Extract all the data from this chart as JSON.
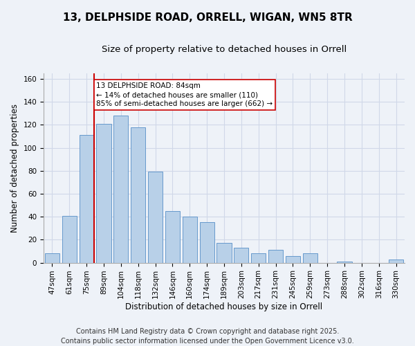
{
  "title": "13, DELPHSIDE ROAD, ORRELL, WIGAN, WN5 8TR",
  "subtitle": "Size of property relative to detached houses in Orrell",
  "xlabel": "Distribution of detached houses by size in Orrell",
  "ylabel": "Number of detached properties",
  "bar_labels": [
    "47sqm",
    "61sqm",
    "75sqm",
    "89sqm",
    "104sqm",
    "118sqm",
    "132sqm",
    "146sqm",
    "160sqm",
    "174sqm",
    "189sqm",
    "203sqm",
    "217sqm",
    "231sqm",
    "245sqm",
    "259sqm",
    "273sqm",
    "288sqm",
    "302sqm",
    "316sqm",
    "330sqm"
  ],
  "bar_values": [
    8,
    41,
    111,
    121,
    128,
    118,
    79,
    45,
    40,
    35,
    17,
    13,
    8,
    11,
    6,
    8,
    0,
    1,
    0,
    0,
    3
  ],
  "bar_color": "#b8d0e8",
  "bar_edge_color": "#6699cc",
  "vline_color": "#cc0000",
  "annotation_text": "13 DELPHSIDE ROAD: 84sqm\n← 14% of detached houses are smaller (110)\n85% of semi-detached houses are larger (662) →",
  "annotation_box_color": "#ffffff",
  "annotation_box_edge_color": "#cc0000",
  "ylim": [
    0,
    165
  ],
  "yticks": [
    0,
    20,
    40,
    60,
    80,
    100,
    120,
    140,
    160
  ],
  "grid_color": "#d0d8e8",
  "background_color": "#eef2f8",
  "footer_text": "Contains HM Land Registry data © Crown copyright and database right 2025.\nContains public sector information licensed under the Open Government Licence v3.0.",
  "title_fontsize": 11,
  "subtitle_fontsize": 9.5,
  "footer_fontsize": 7,
  "annotation_fontsize": 7.5,
  "axis_label_fontsize": 8.5,
  "tick_fontsize": 7.5
}
